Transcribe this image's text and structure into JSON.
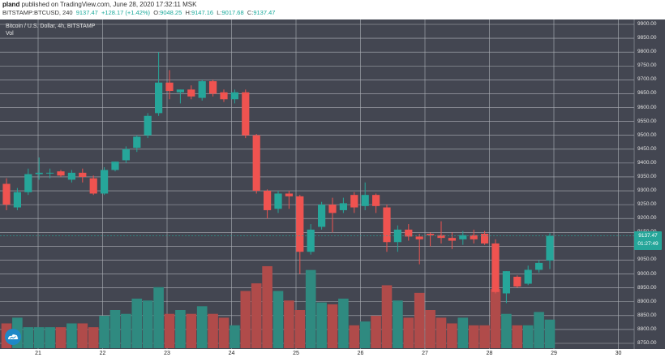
{
  "header": {
    "user": "pland",
    "published_text": " published on TradingView.com, June 28, 2020 17:32:11 MSK",
    "symbol": "BITSTAMP:BTCUSD, 240",
    "last": "9137.47",
    "change": "+128.17 (+1.42%)",
    "open_label": "O:",
    "open": "9048.25",
    "high_label": "H:",
    "high": "9147.16",
    "low_label": "L:",
    "low": "9017.68",
    "close_label": "C:",
    "close": "9137.47"
  },
  "chart_title": "Bitcoin / U.S. Dollar, 4h, BITSTAMP",
  "volume_label": "Vol",
  "last_price_box": {
    "price": "9137.47",
    "countdown": "01:27:49"
  },
  "colors": {
    "background": "#434651",
    "grid": "#aeb1b8",
    "up": "#26a69a",
    "down": "#ef5350",
    "vol_up": "#2f8a80",
    "vol_down": "#b04b4a"
  },
  "chart_data": {
    "type": "candlestick",
    "title": "Bitcoin / U.S. Dollar, 4h, BITSTAMP",
    "ylim": [
      8750,
      9900
    ],
    "y_ticks": [
      9900,
      9850,
      9800,
      9750,
      9700,
      9650,
      9600,
      9550,
      9500,
      9450,
      9400,
      9350,
      9300,
      9250,
      9200,
      9150,
      9100,
      9050,
      9000,
      8950,
      8900,
      8850,
      8800,
      8750
    ],
    "x_ticks": [
      "21",
      "22",
      "23",
      "24",
      "25",
      "26",
      "27",
      "28",
      "29",
      "30"
    ],
    "candles": [
      {
        "o": 9325,
        "h": 9345,
        "l": 9230,
        "c": 9250
      },
      {
        "o": 9240,
        "h": 9310,
        "l": 9230,
        "c": 9295
      },
      {
        "o": 9295,
        "h": 9380,
        "l": 9285,
        "c": 9360
      },
      {
        "o": 9360,
        "h": 9420,
        "l": 9340,
        "c": 9365
      },
      {
        "o": 9365,
        "h": 9380,
        "l": 9345,
        "c": 9365
      },
      {
        "o": 9370,
        "h": 9375,
        "l": 9350,
        "c": 9355
      },
      {
        "o": 9340,
        "h": 9375,
        "l": 9330,
        "c": 9365
      },
      {
        "o": 9365,
        "h": 9380,
        "l": 9330,
        "c": 9350
      },
      {
        "o": 9345,
        "h": 9355,
        "l": 9285,
        "c": 9290
      },
      {
        "o": 9290,
        "h": 9385,
        "l": 9285,
        "c": 9375
      },
      {
        "o": 9375,
        "h": 9405,
        "l": 9370,
        "c": 9405
      },
      {
        "o": 9410,
        "h": 9460,
        "l": 9400,
        "c": 9450
      },
      {
        "o": 9455,
        "h": 9500,
        "l": 9440,
        "c": 9495
      },
      {
        "o": 9500,
        "h": 9580,
        "l": 9490,
        "c": 9570
      },
      {
        "o": 9580,
        "h": 9800,
        "l": 9570,
        "c": 9690
      },
      {
        "o": 9690,
        "h": 9735,
        "l": 9630,
        "c": 9660
      },
      {
        "o": 9655,
        "h": 9665,
        "l": 9615,
        "c": 9665
      },
      {
        "o": 9665,
        "h": 9680,
        "l": 9630,
        "c": 9640
      },
      {
        "o": 9635,
        "h": 9700,
        "l": 9625,
        "c": 9695
      },
      {
        "o": 9695,
        "h": 9700,
        "l": 9640,
        "c": 9650
      },
      {
        "o": 9655,
        "h": 9665,
        "l": 9620,
        "c": 9630
      },
      {
        "o": 9630,
        "h": 9665,
        "l": 9615,
        "c": 9655
      },
      {
        "o": 9655,
        "h": 9665,
        "l": 9490,
        "c": 9500
      },
      {
        "o": 9500,
        "h": 9505,
        "l": 9290,
        "c": 9300
      },
      {
        "o": 9300,
        "h": 9305,
        "l": 9200,
        "c": 9230
      },
      {
        "o": 9235,
        "h": 9300,
        "l": 9220,
        "c": 9290
      },
      {
        "o": 9290,
        "h": 9300,
        "l": 9235,
        "c": 9280
      },
      {
        "o": 9280,
        "h": 9285,
        "l": 9000,
        "c": 9080
      },
      {
        "o": 9080,
        "h": 9180,
        "l": 9070,
        "c": 9160
      },
      {
        "o": 9170,
        "h": 9260,
        "l": 9160,
        "c": 9250
      },
      {
        "o": 9250,
        "h": 9275,
        "l": 9150,
        "c": 9220
      },
      {
        "o": 9230,
        "h": 9275,
        "l": 9220,
        "c": 9255
      },
      {
        "o": 9285,
        "h": 9295,
        "l": 9220,
        "c": 9240
      },
      {
        "o": 9245,
        "h": 9330,
        "l": 9230,
        "c": 9285
      },
      {
        "o": 9285,
        "h": 9290,
        "l": 9220,
        "c": 9245
      },
      {
        "o": 9240,
        "h": 9250,
        "l": 9080,
        "c": 9115
      },
      {
        "o": 9115,
        "h": 9175,
        "l": 9080,
        "c": 9160
      },
      {
        "o": 9160,
        "h": 9180,
        "l": 9120,
        "c": 9135
      },
      {
        "o": 9135,
        "h": 9145,
        "l": 9035,
        "c": 9125
      },
      {
        "o": 9145,
        "h": 9150,
        "l": 9100,
        "c": 9140
      },
      {
        "o": 9140,
        "h": 9190,
        "l": 9110,
        "c": 9130
      },
      {
        "o": 9130,
        "h": 9150,
        "l": 9090,
        "c": 9120
      },
      {
        "o": 9125,
        "h": 9155,
        "l": 9105,
        "c": 9140
      },
      {
        "o": 9140,
        "h": 9160,
        "l": 9110,
        "c": 9125
      },
      {
        "o": 9145,
        "h": 9155,
        "l": 9105,
        "c": 9110
      },
      {
        "o": 9110,
        "h": 9125,
        "l": 8930,
        "c": 8935
      },
      {
        "o": 8930,
        "h": 9010,
        "l": 8895,
        "c": 9010
      },
      {
        "o": 8990,
        "h": 8995,
        "l": 8950,
        "c": 8955
      },
      {
        "o": 8965,
        "h": 9030,
        "l": 8960,
        "c": 9015
      },
      {
        "o": 9015,
        "h": 9050,
        "l": 9005,
        "c": 9040
      },
      {
        "o": 9048.25,
        "h": 9147.16,
        "l": 9017.68,
        "c": 9137.47
      }
    ],
    "volumes": [
      130,
      160,
      110,
      110,
      110,
      110,
      130,
      130,
      110,
      170,
      200,
      180,
      260,
      250,
      320,
      180,
      200,
      180,
      220,
      180,
      160,
      120,
      300,
      340,
      430,
      300,
      250,
      200,
      410,
      240,
      230,
      260,
      120,
      140,
      170,
      330,
      250,
      160,
      290,
      200,
      160,
      130,
      160,
      120,
      120,
      310,
      180,
      120,
      120,
      190,
      150
    ]
  }
}
